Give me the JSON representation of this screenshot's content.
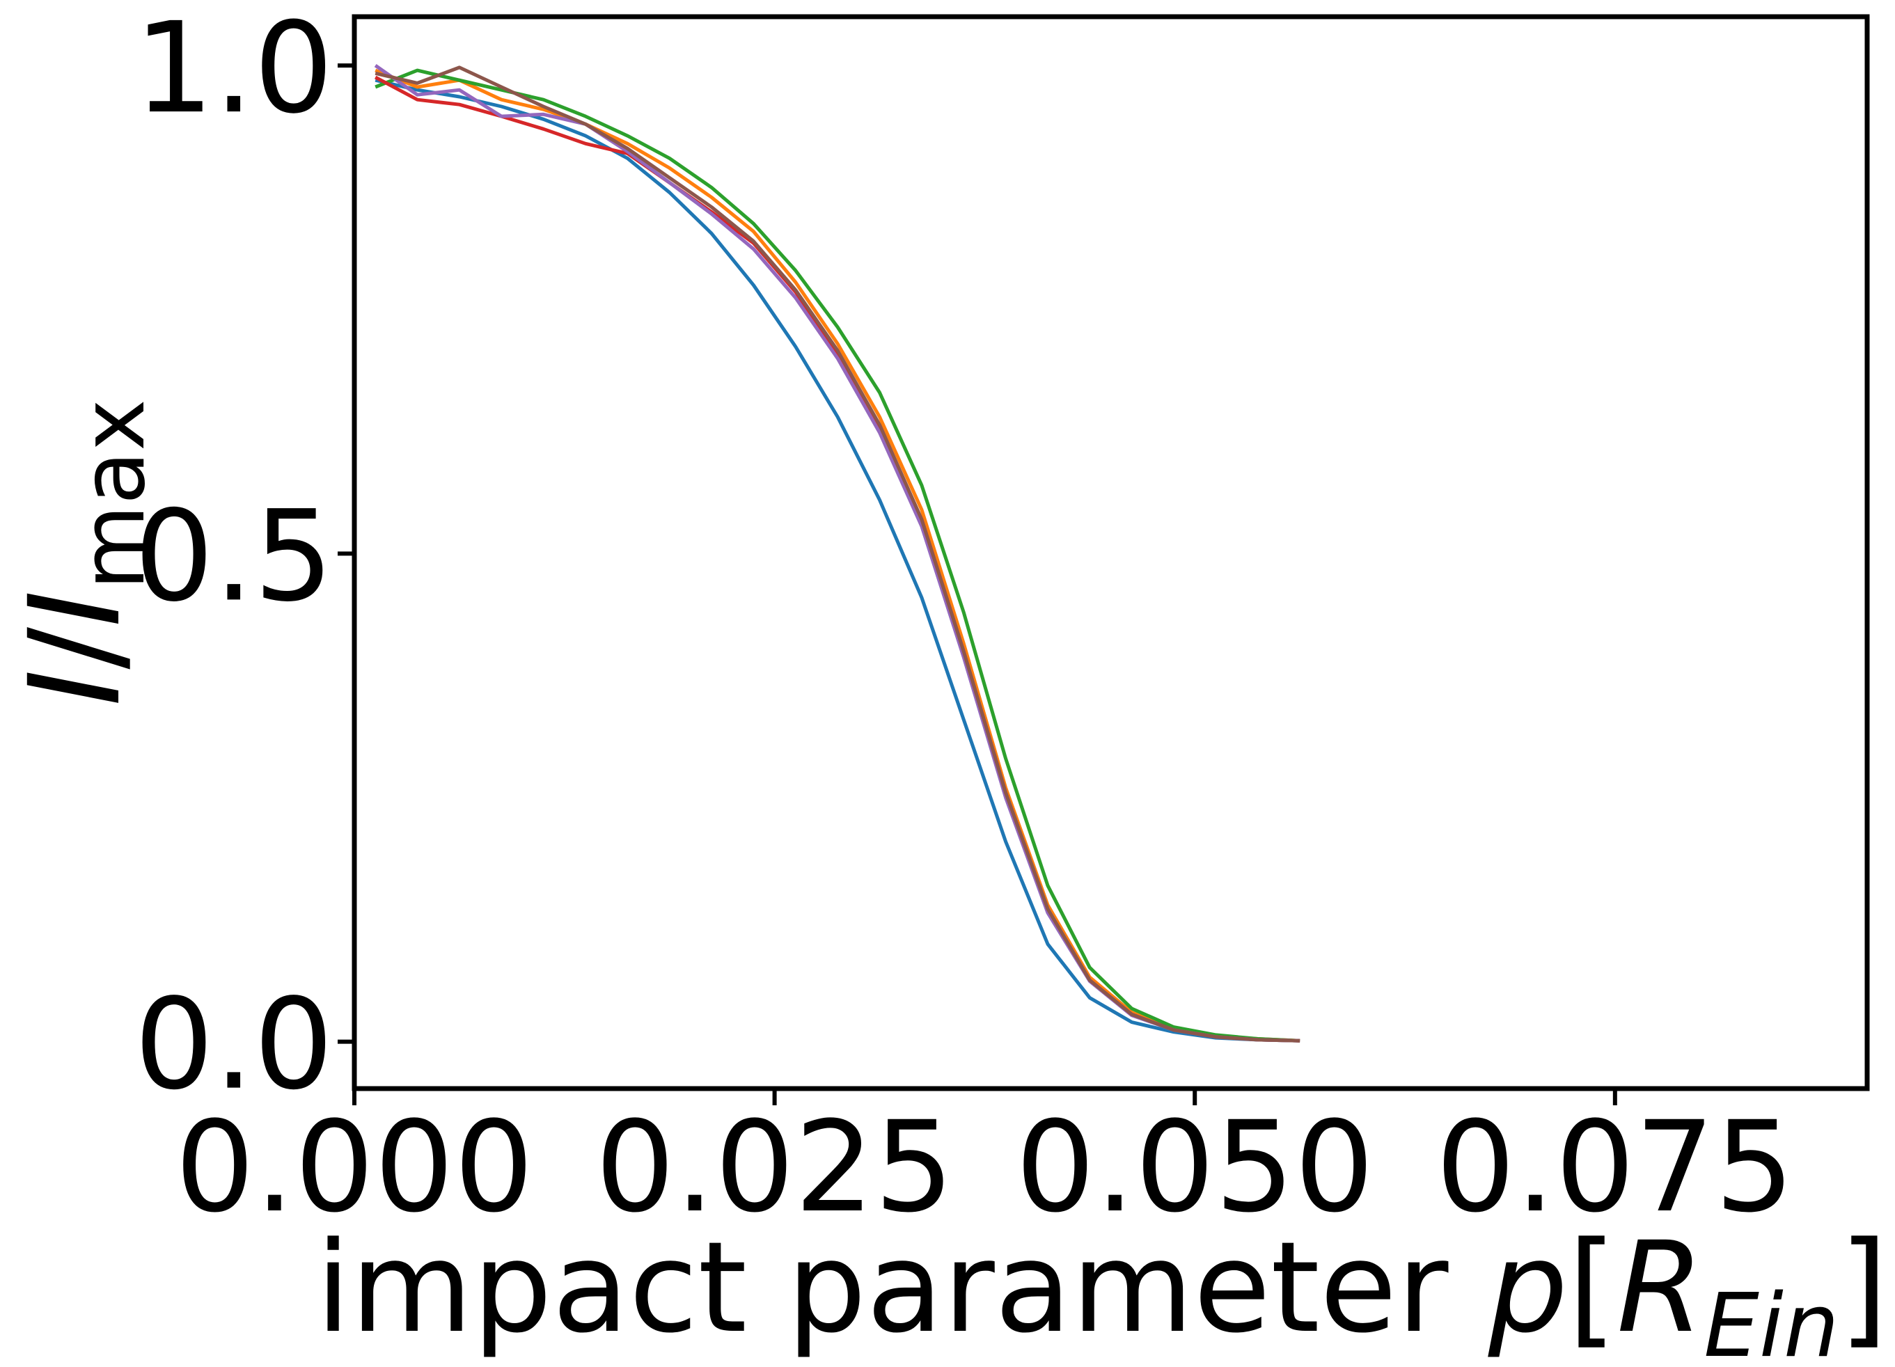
{
  "chart_data": {
    "type": "line",
    "title": "",
    "xlabel": {
      "text": "impact parameter ",
      "var": "p",
      "bracket_open": "[",
      "sym": "R",
      "sub": "Ein",
      "bracket_close": "]"
    },
    "ylabel": {
      "var": "I",
      "slash": "/",
      "var2": "I",
      "sub": "max"
    },
    "xlim": [
      0.0,
      0.09
    ],
    "ylim": [
      -0.048,
      1.05
    ],
    "xticks": [
      {
        "value": 0.0,
        "label": "0.000"
      },
      {
        "value": 0.025,
        "label": "0.025"
      },
      {
        "value": 0.05,
        "label": "0.050"
      },
      {
        "value": 0.075,
        "label": "0.075"
      }
    ],
    "yticks": [
      {
        "value": 0.0,
        "label": "0.0"
      },
      {
        "value": 0.5,
        "label": "0.5"
      },
      {
        "value": 1.0,
        "label": "1.0"
      }
    ],
    "grid": false,
    "legend": null,
    "x": [
      0.00125,
      0.00375,
      0.00625,
      0.00875,
      0.01125,
      0.01375,
      0.01625,
      0.01875,
      0.02125,
      0.02375,
      0.02625,
      0.02875,
      0.03125,
      0.03375,
      0.03625,
      0.03875,
      0.04125,
      0.04375,
      0.04625,
      0.04875,
      0.05125,
      0.05375,
      0.05625
    ],
    "series": [
      {
        "color": "#1f77b4",
        "values": [
          0.985,
          0.975,
          0.968,
          0.958,
          0.945,
          0.928,
          0.905,
          0.87,
          0.828,
          0.775,
          0.712,
          0.64,
          0.555,
          0.455,
          0.33,
          0.205,
          0.1,
          0.045,
          0.02,
          0.01,
          0.004,
          0.002,
          0.001
        ]
      },
      {
        "color": "#ff7f0e",
        "values": [
          0.995,
          0.978,
          0.985,
          0.965,
          0.955,
          0.94,
          0.92,
          0.895,
          0.865,
          0.83,
          0.778,
          0.715,
          0.64,
          0.545,
          0.408,
          0.26,
          0.14,
          0.066,
          0.03,
          0.013,
          0.006,
          0.003,
          0.001
        ]
      },
      {
        "color": "#2ca02c",
        "values": [
          0.978,
          0.995,
          0.985,
          0.975,
          0.965,
          0.948,
          0.928,
          0.905,
          0.875,
          0.838,
          0.79,
          0.732,
          0.665,
          0.57,
          0.44,
          0.29,
          0.16,
          0.076,
          0.034,
          0.015,
          0.007,
          0.003,
          0.001
        ]
      },
      {
        "color": "#d62728",
        "values": [
          0.988,
          0.965,
          0.96,
          0.948,
          0.935,
          0.92,
          0.91,
          0.88,
          0.85,
          0.818,
          0.768,
          0.705,
          0.63,
          0.535,
          0.4,
          0.255,
          0.135,
          0.063,
          0.028,
          0.012,
          0.005,
          0.002,
          0.001
        ]
      },
      {
        "color": "#9467bd",
        "values": [
          1.0,
          0.97,
          0.975,
          0.948,
          0.95,
          0.94,
          0.912,
          0.88,
          0.848,
          0.812,
          0.762,
          0.7,
          0.624,
          0.528,
          0.394,
          0.25,
          0.132,
          0.062,
          0.027,
          0.012,
          0.005,
          0.002,
          0.001
        ]
      },
      {
        "color": "#8c564b",
        "values": [
          0.992,
          0.982,
          0.998,
          0.978,
          0.958,
          0.94,
          0.915,
          0.885,
          0.855,
          0.82,
          0.77,
          0.708,
          0.632,
          0.535,
          0.4,
          0.255,
          0.136,
          0.063,
          0.028,
          0.012,
          0.005,
          0.002,
          0.001
        ]
      }
    ]
  }
}
